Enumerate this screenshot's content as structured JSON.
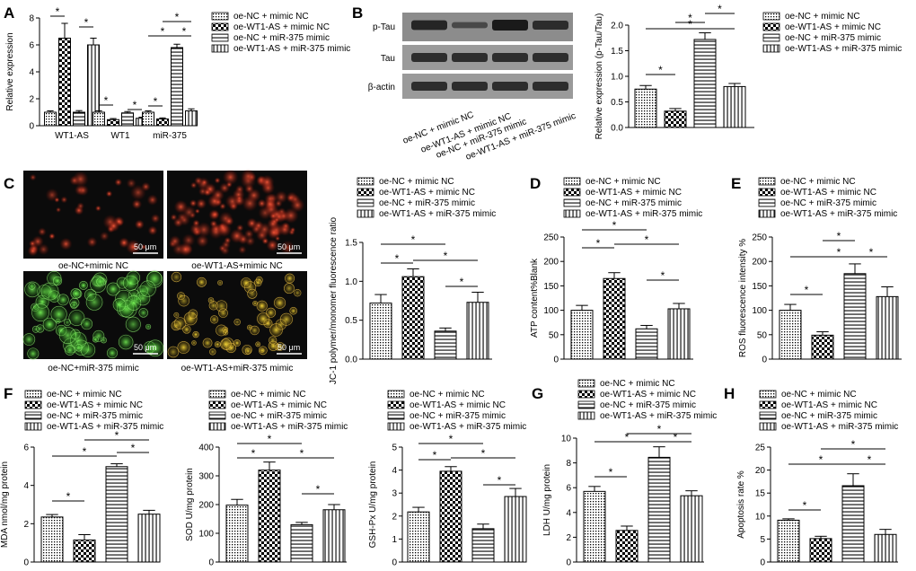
{
  "colors": {
    "ink": "#000000",
    "fill": "#ffffff",
    "micro_bg": "#0b0b0b"
  },
  "legend": {
    "entries": [
      "oe-NC + mimic NC",
      "oe-WT1-AS + mimic NC",
      "oe-NC + miR-375 mimic",
      "oe-WT1-AS + miR-375 mimic"
    ],
    "patterns": [
      "dots",
      "checker",
      "hlines",
      "vlines"
    ]
  },
  "star": "*",
  "panels": {
    "A": "A",
    "B": "B",
    "C": "C",
    "D": "D",
    "E": "E",
    "F": "F",
    "G": "G",
    "H": "H"
  },
  "blot": {
    "rows": [
      "p-Tau",
      "Tau",
      "β-actin"
    ],
    "lanes": [
      "oe-NC + mimic NC",
      "oe-WT1-AS + mimic NC",
      "oe-NC + miR-375 mimic",
      "oe-WT1-AS + miR-375 mimic"
    ]
  },
  "micro": {
    "captions": [
      "oe-NC+mimic NC",
      "oe-WT1-AS+mimic NC",
      "oe-NC+miR-375 mimic",
      "oe-WT1-AS+miR-375 mimic"
    ],
    "scale": "50 μm",
    "hues": [
      "red-sparse",
      "red-dense",
      "green",
      "yellow-mixed"
    ]
  },
  "chart_data": [
    {
      "id": "A",
      "type": "bar",
      "ylabel": "Relative expression",
      "ylim": [
        0,
        8
      ],
      "yticks": [
        0,
        2,
        4,
        6,
        8
      ],
      "categories": [
        "WT1-AS",
        "WT1",
        "miR-375"
      ],
      "series": [
        {
          "name": "oe-NC + mimic NC",
          "values": [
            1.0,
            1.0,
            1.0
          ],
          "err": [
            0.1,
            0.1,
            0.1
          ]
        },
        {
          "name": "oe-WT1-AS + mimic NC",
          "values": [
            6.5,
            0.45,
            0.5
          ],
          "err": [
            1.1,
            0.08,
            0.08
          ]
        },
        {
          "name": "oe-NC + miR-375 mimic",
          "values": [
            1.0,
            0.95,
            5.8
          ],
          "err": [
            0.12,
            0.1,
            0.25
          ]
        },
        {
          "name": "oe-WT1-AS + miR-375 mimic",
          "values": [
            6.0,
            0.55,
            1.1
          ],
          "err": [
            0.5,
            0.08,
            0.15
          ]
        }
      ]
    },
    {
      "id": "B",
      "type": "bar",
      "ylabel": "Relative expression (p-Tau/Tau)",
      "ylim": [
        0,
        2.0
      ],
      "yticks": [
        0.0,
        0.5,
        1.0,
        1.5,
        2.0
      ],
      "values": [
        0.75,
        0.32,
        1.72,
        0.8
      ],
      "err": [
        0.07,
        0.05,
        0.13,
        0.06
      ]
    },
    {
      "id": "C",
      "type": "bar",
      "ylabel": "JC-1 polymer/monomer fluorescence ratio",
      "ylim": [
        0,
        1.5
      ],
      "yticks": [
        0.0,
        0.5,
        1.0,
        1.5
      ],
      "values": [
        0.72,
        1.06,
        0.36,
        0.73
      ],
      "err": [
        0.11,
        0.1,
        0.04,
        0.13
      ]
    },
    {
      "id": "D",
      "type": "bar",
      "ylabel": "ATP content%Blank",
      "ylim": [
        0,
        250
      ],
      "yticks": [
        0,
        50,
        100,
        150,
        200,
        250
      ],
      "values": [
        100,
        165,
        62,
        103
      ],
      "err": [
        10,
        12,
        7,
        11
      ]
    },
    {
      "id": "E",
      "type": "bar",
      "ylabel": "ROS fluorescence intensity %",
      "ylim": [
        0,
        250
      ],
      "yticks": [
        0,
        50,
        100,
        150,
        200,
        250
      ],
      "values": [
        100,
        49,
        175,
        128
      ],
      "err": [
        12,
        7,
        20,
        20
      ]
    },
    {
      "id": "F1",
      "type": "bar",
      "ylabel": "MDA nmol/mg protein",
      "ylim": [
        0,
        6
      ],
      "yticks": [
        0,
        2,
        4,
        6
      ],
      "values": [
        2.35,
        1.15,
        4.98,
        2.5
      ],
      "err": [
        0.13,
        0.28,
        0.15,
        0.2
      ]
    },
    {
      "id": "F2",
      "type": "bar",
      "ylabel": "SOD U/mg protein",
      "ylim": [
        0,
        400
      ],
      "yticks": [
        0,
        100,
        200,
        300,
        400
      ],
      "values": [
        198,
        320,
        130,
        182
      ],
      "err": [
        20,
        28,
        8,
        18
      ]
    },
    {
      "id": "F3",
      "type": "bar",
      "ylabel": "GSH-Px U/mg protein",
      "ylim": [
        0,
        5
      ],
      "yticks": [
        0,
        1,
        2,
        3,
        4,
        5
      ],
      "values": [
        2.18,
        3.95,
        1.45,
        2.85
      ],
      "err": [
        0.2,
        0.2,
        0.2,
        0.35
      ]
    },
    {
      "id": "G",
      "type": "bar",
      "ylabel": "LDH U/mg protein",
      "ylim": [
        0,
        10
      ],
      "yticks": [
        0,
        2,
        4,
        6,
        8,
        10
      ],
      "values": [
        5.7,
        2.55,
        8.45,
        5.35
      ],
      "err": [
        0.4,
        0.35,
        0.85,
        0.4
      ]
    },
    {
      "id": "H",
      "type": "bar",
      "ylabel": "Apoptosis rate %",
      "ylim": [
        0,
        25
      ],
      "yticks": [
        0,
        5,
        10,
        15,
        20,
        25
      ],
      "values": [
        9.1,
        5.1,
        16.6,
        6.0
      ],
      "err": [
        0.3,
        0.5,
        2.6,
        1.1
      ]
    }
  ]
}
